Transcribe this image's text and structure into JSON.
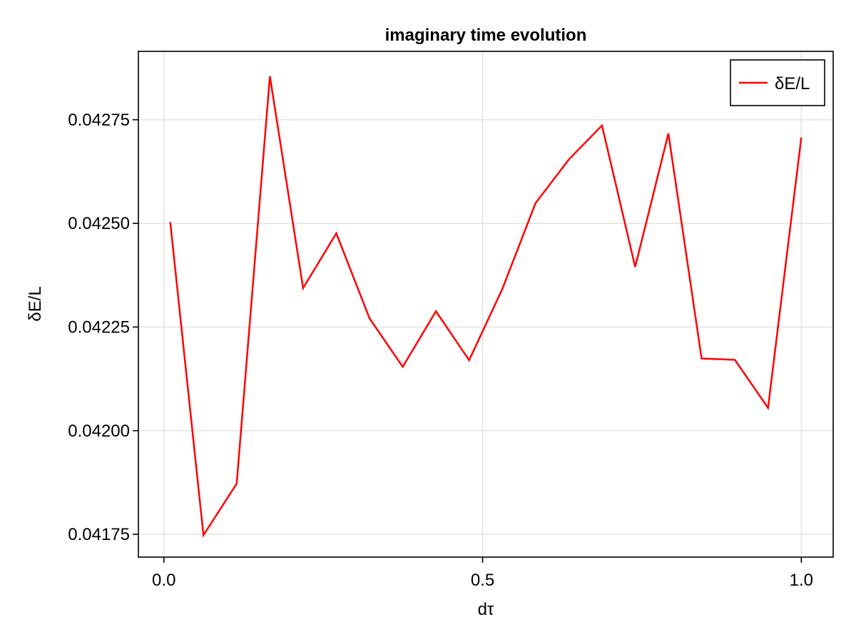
{
  "chart_data": {
    "type": "line",
    "title": "imaginary time evolution",
    "xlabel": "dτ",
    "ylabel": "δE/L",
    "xlim": [
      -0.04,
      1.05
    ],
    "ylim": [
      0.041695,
      0.042915
    ],
    "xticks": [
      0.0,
      0.5,
      1.0
    ],
    "xtick_labels": [
      "0.0",
      "0.5",
      "1.0"
    ],
    "yticks": [
      0.04175,
      0.042,
      0.04225,
      0.0425,
      0.04275
    ],
    "ytick_labels": [
      "0.04175",
      "0.04200",
      "0.04225",
      "0.04250",
      "0.04275"
    ],
    "grid": true,
    "legend": {
      "position": "top-right",
      "entries": [
        "δE/L"
      ]
    },
    "series": [
      {
        "name": "δE/L",
        "color": "#ff0000",
        "x": [
          0.01,
          0.0621,
          0.1142,
          0.1663,
          0.2184,
          0.2705,
          0.3226,
          0.3747,
          0.4268,
          0.4789,
          0.531,
          0.5831,
          0.6352,
          0.6873,
          0.7394,
          0.7915,
          0.8436,
          0.8957,
          0.9478,
          1.0
        ],
        "y": [
          0.042503,
          0.041748,
          0.041872,
          0.042855,
          0.042344,
          0.042476,
          0.042271,
          0.042154,
          0.042288,
          0.04217,
          0.042342,
          0.042549,
          0.042654,
          0.042736,
          0.042395,
          0.042717,
          0.042174,
          0.042171,
          0.042055,
          0.042707
        ]
      }
    ]
  }
}
